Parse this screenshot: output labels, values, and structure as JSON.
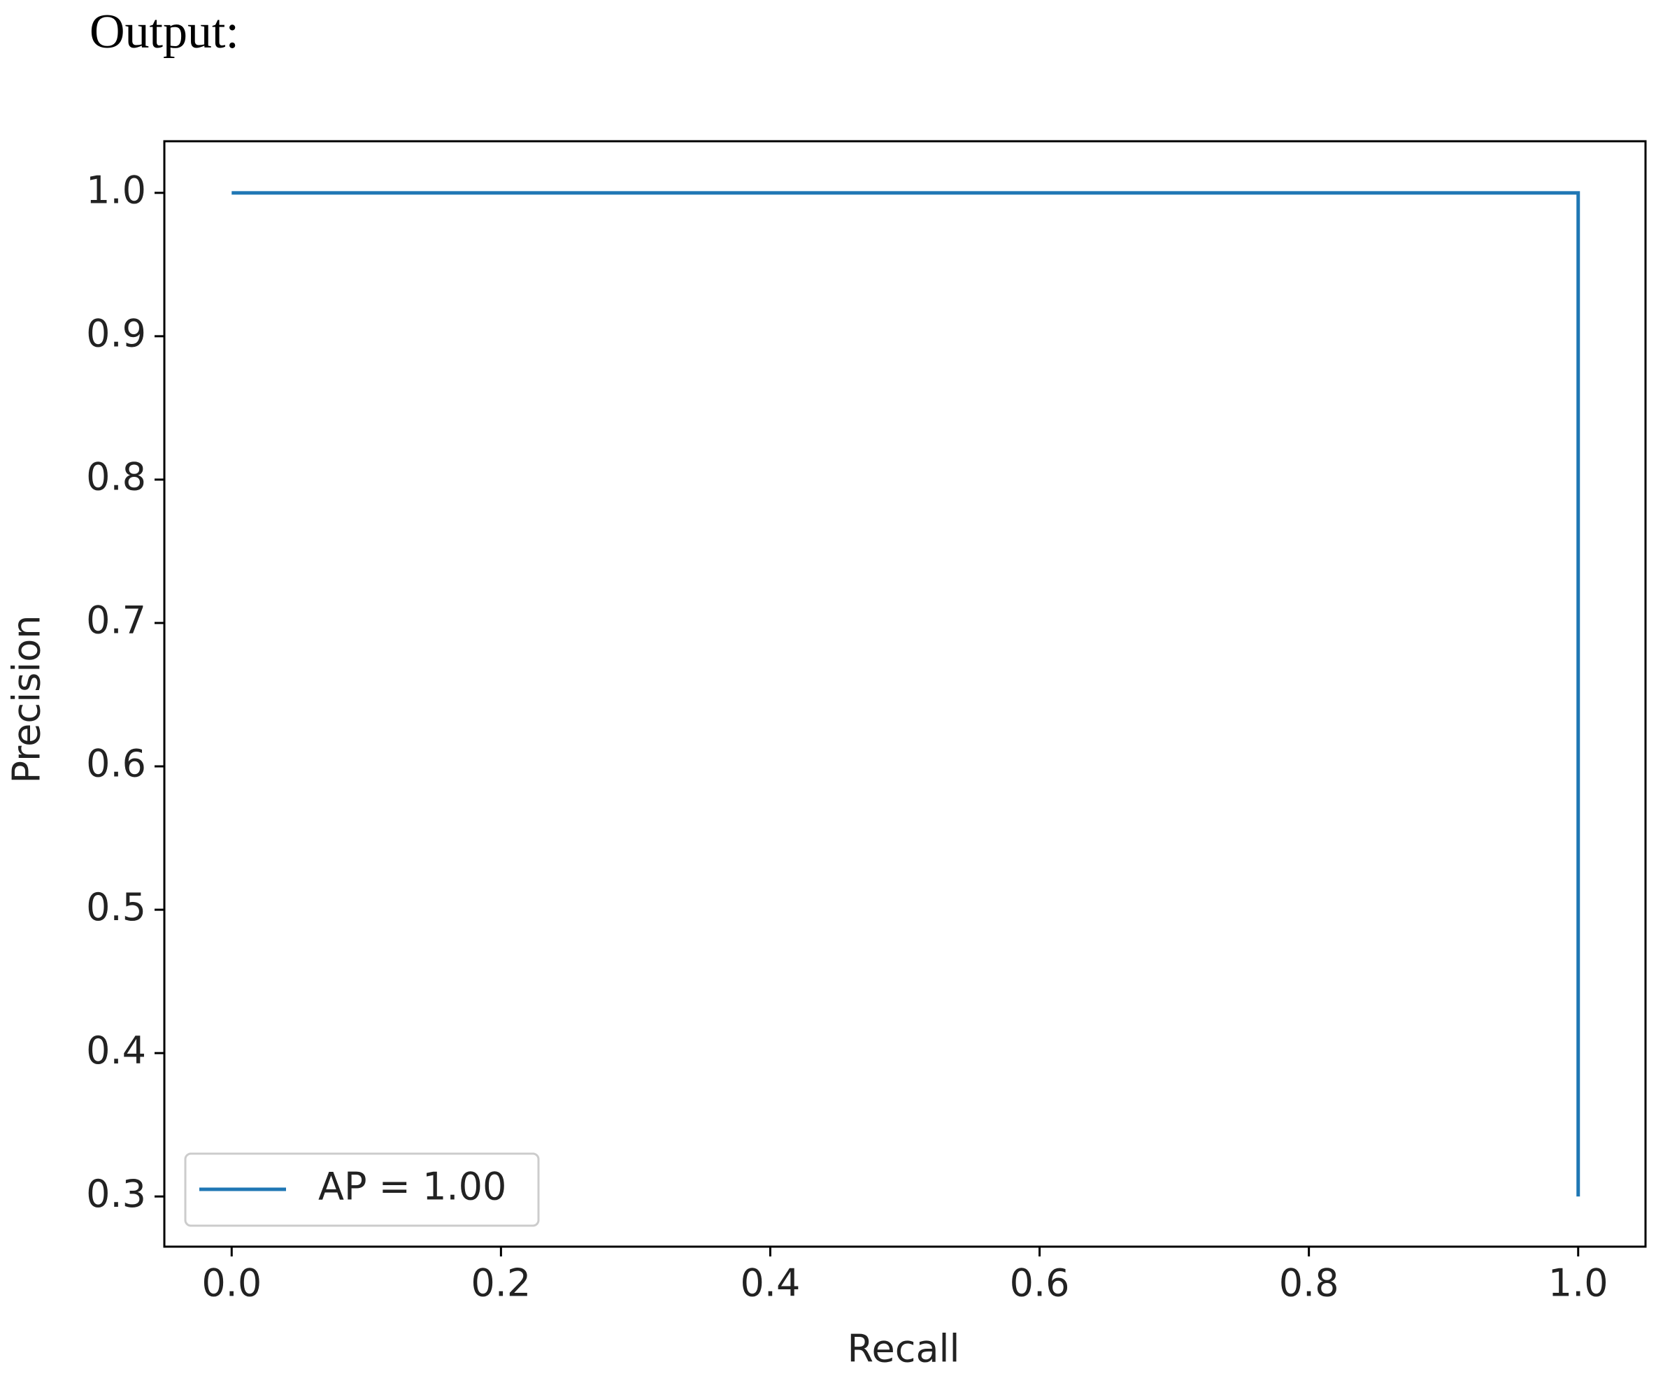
{
  "heading": "Output:",
  "chart_data": {
    "type": "line",
    "x_label": "Recall",
    "y_label": "Precision",
    "x": [
      0,
      1,
      1
    ],
    "series": [
      {
        "name": "AP = 1.00",
        "color": "#1f77b4",
        "values": [
          1,
          1,
          0.3
        ]
      }
    ],
    "xlim": [
      -0.05,
      1.05
    ],
    "ylim": [
      0.265,
      1.036
    ],
    "xticks": [
      {
        "value": 0,
        "label": "0.0"
      },
      0.2,
      0.4,
      0.6,
      0.8,
      {
        "value": 1,
        "label": "1.0"
      }
    ],
    "yticks": [
      0.3,
      0.4,
      0.5,
      0.6,
      0.7,
      0.8,
      0.9,
      {
        "value": 1,
        "label": "1.0"
      }
    ],
    "grid": false,
    "legend": "lower left"
  }
}
